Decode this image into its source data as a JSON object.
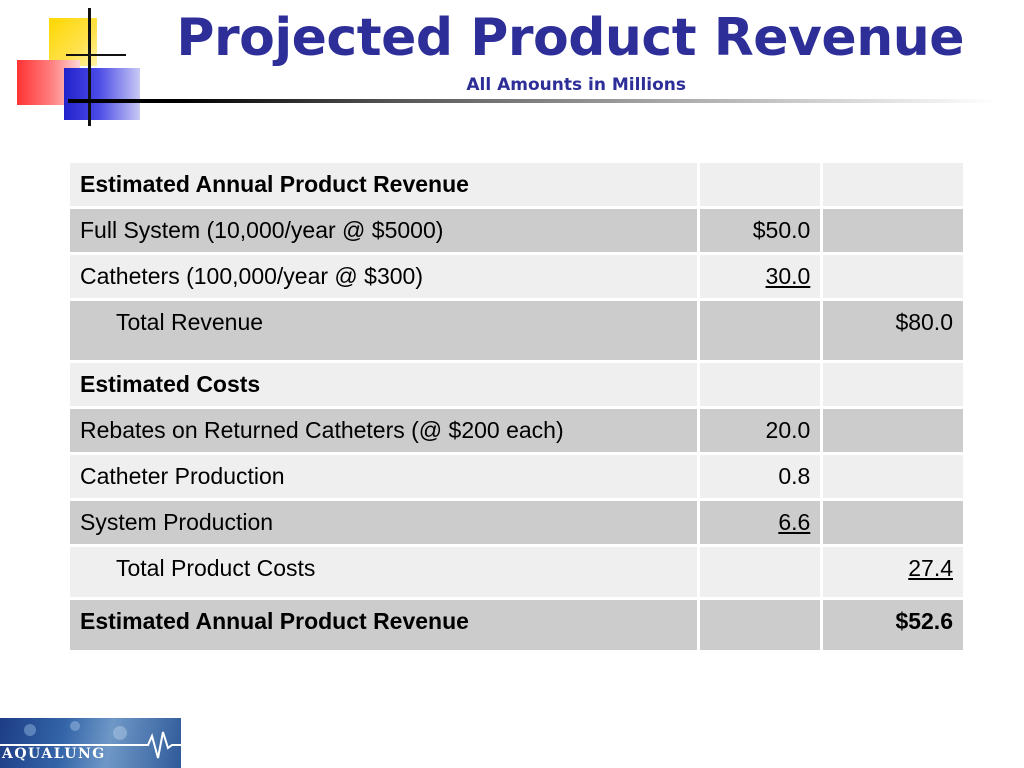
{
  "slide": {
    "title": "Projected Product Revenue",
    "subtitle": "All Amounts in Millions"
  },
  "table": {
    "rows": [
      {
        "label": "Estimated Annual Product Revenue",
        "col2": "",
        "col3": ""
      },
      {
        "label": "Full System (10,000/year @ $5000)",
        "col2": "$50.0",
        "col3": ""
      },
      {
        "label": "Catheters (100,000/year @ $300)",
        "col2": "30.0",
        "col3": ""
      },
      {
        "label": "Total Revenue",
        "col2": "",
        "col3": "$80.0"
      },
      {
        "label": "Estimated Costs",
        "col2": "",
        "col3": ""
      },
      {
        "label": "Rebates on Returned Catheters (@ $200 each)",
        "col2": "20.0",
        "col3": ""
      },
      {
        "label": "Catheter Production",
        "col2": "0.8",
        "col3": ""
      },
      {
        "label": "System Production",
        "col2": "6.6",
        "col3": ""
      },
      {
        "label": "Total Product Costs",
        "col2": "",
        "col3": "27.4"
      },
      {
        "label": "Estimated Annual Product Revenue",
        "col2": "",
        "col3": "$52.6"
      }
    ]
  },
  "logo": {
    "text": "AQUALUNG"
  },
  "colors": {
    "title": "#2e2e99",
    "row_light": "#efefef",
    "row_dark": "#cccccc"
  }
}
